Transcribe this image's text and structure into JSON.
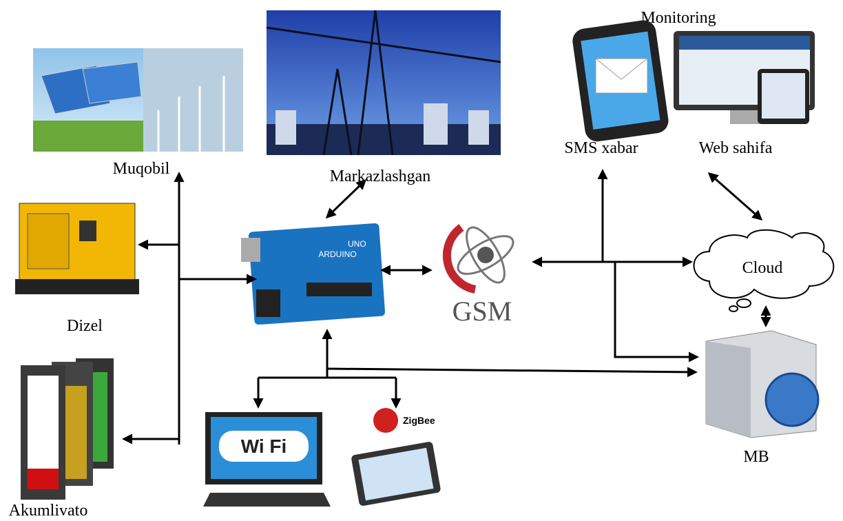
{
  "nodes": {
    "alternative": {
      "label": "Muqobil"
    },
    "central": {
      "label": "Markazlashgan"
    },
    "monitoring": {
      "label": "Monitoring"
    },
    "sms": {
      "label": "SMS xabar"
    },
    "web": {
      "label": "Web sahifa"
    },
    "diesel": {
      "label": "Dizel"
    },
    "battery": {
      "label": "Akumlivato"
    },
    "controller": {
      "label": "UNO",
      "brand": "ARDUINO"
    },
    "gsm": {
      "label": "GSM"
    },
    "cloud": {
      "label": "Cloud"
    },
    "database": {
      "label": "MB"
    },
    "wifi": {
      "label": "Wi Fi"
    },
    "zigbee": {
      "label": "ZigBee"
    }
  }
}
